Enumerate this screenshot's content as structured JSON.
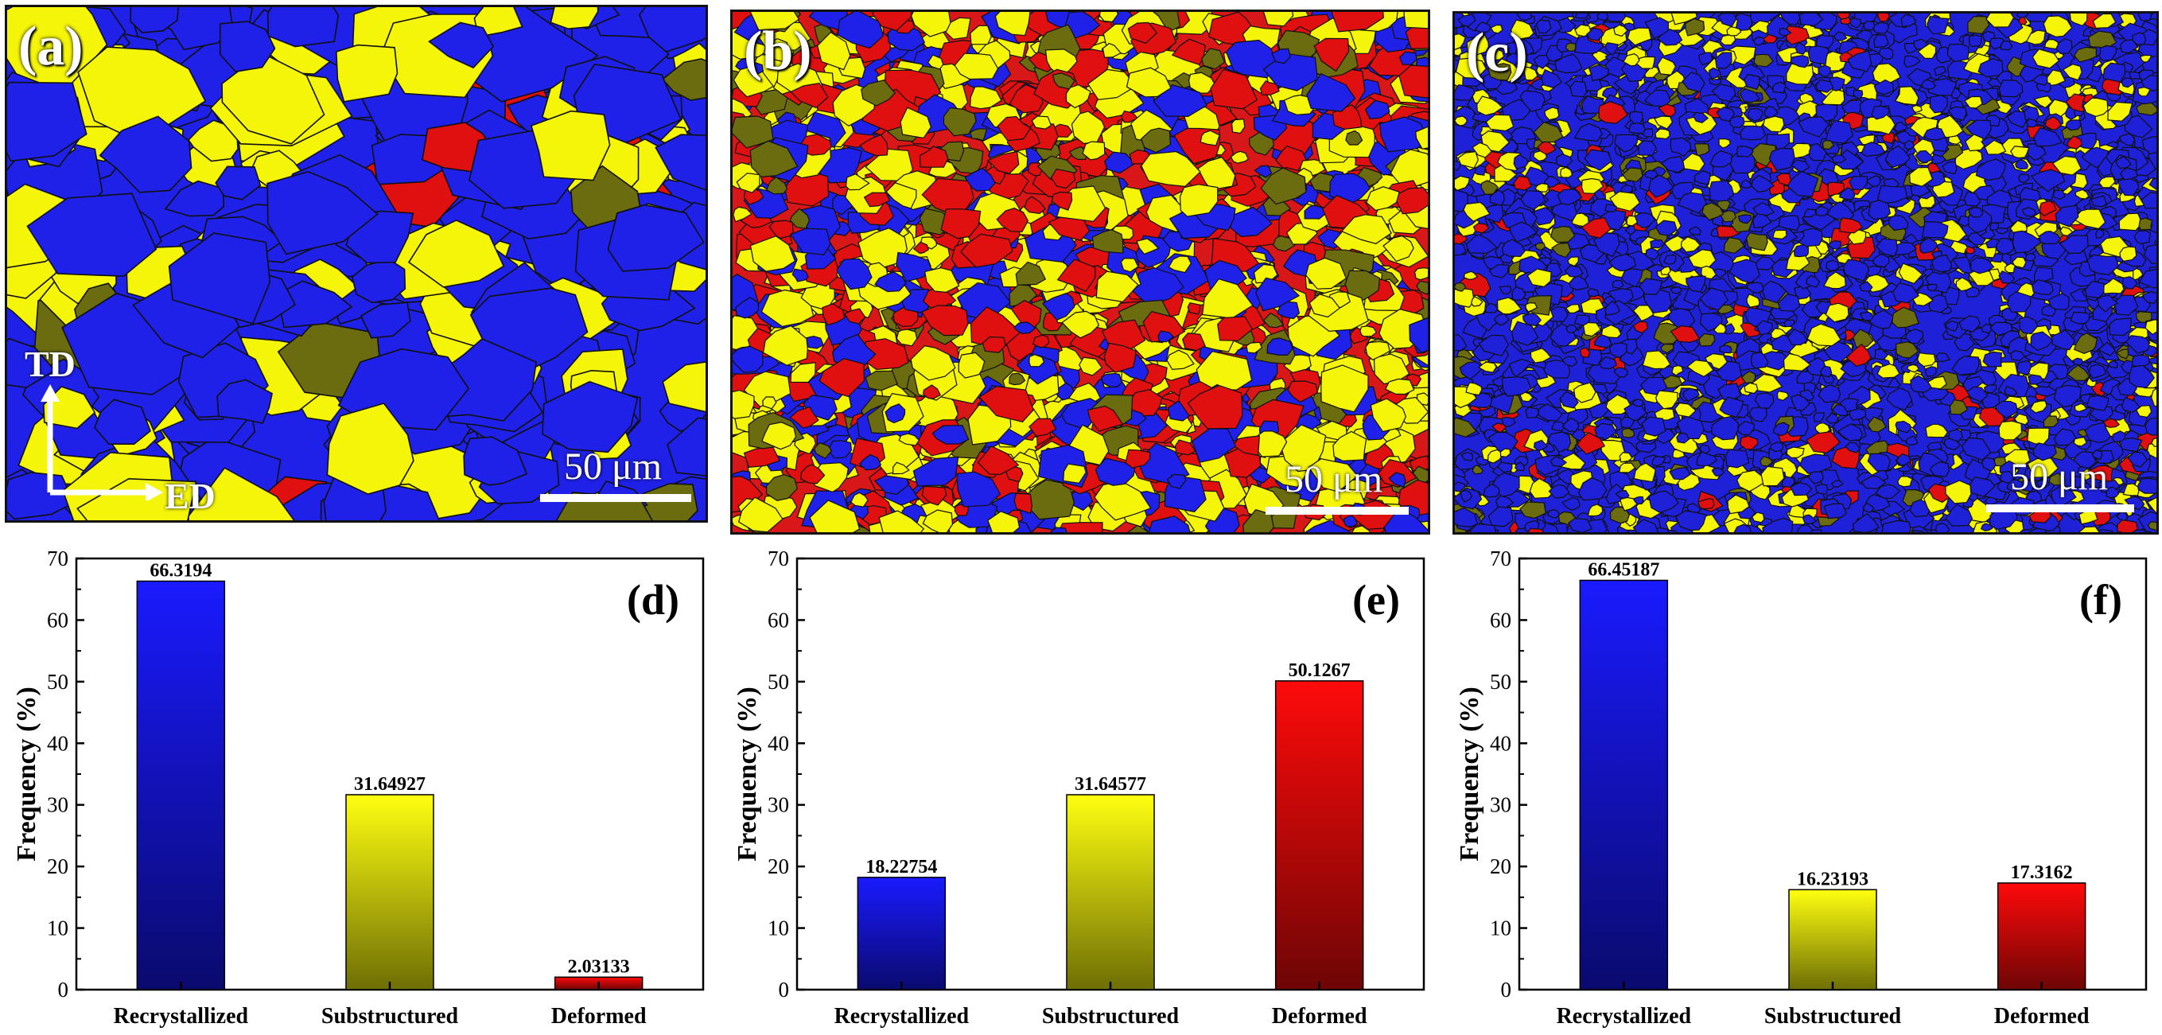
{
  "maps": [
    {
      "label": "(a)",
      "scalebar": "50 μm",
      "colors": {
        "base": "#1f21e8",
        "yellow": "#f5f50a",
        "red": "#e01010",
        "olive": "#6b6b10",
        "line": "#101010"
      }
    },
    {
      "label": "(b)",
      "scalebar": "50 μm",
      "colors": {
        "base": "#d81818",
        "yellow": "#f5f50a",
        "red": "#e01010",
        "olive": "#6b6b10",
        "line": "#101010"
      }
    },
    {
      "label": "(c)",
      "scalebar": "50 μm",
      "colors": {
        "base": "#1f21d8",
        "yellow": "#f5f50a",
        "red": "#e01010",
        "olive": "#6b6b10",
        "line": "#101010"
      }
    }
  ],
  "axes": {
    "td": "TD",
    "ed": "ED"
  },
  "chart_data": [
    {
      "type": "bar",
      "panel": "(d)",
      "ylabel": "Frequency (%)",
      "ylim": [
        0,
        70
      ],
      "yticks": [
        0,
        10,
        20,
        30,
        40,
        50,
        60,
        70
      ],
      "categories": [
        "Recrystallized",
        "Substructured",
        "Deformed"
      ],
      "values": [
        66.3194,
        31.64927,
        2.03133
      ],
      "value_labels": [
        "66.3194",
        "31.64927",
        "2.03133"
      ]
    },
    {
      "type": "bar",
      "panel": "(e)",
      "ylabel": "Frequency (%)",
      "ylim": [
        0,
        70
      ],
      "yticks": [
        0,
        10,
        20,
        30,
        40,
        50,
        60,
        70
      ],
      "categories": [
        "Recrystallized",
        "Substructured",
        "Deformed"
      ],
      "values": [
        18.22754,
        31.64577,
        50.1267
      ],
      "value_labels": [
        "18.22754",
        "31.64577",
        "50.1267"
      ]
    },
    {
      "type": "bar",
      "panel": "(f)",
      "ylabel": "Frequency (%)",
      "ylim": [
        0,
        70
      ],
      "yticks": [
        0,
        10,
        20,
        30,
        40,
        50,
        60,
        70
      ],
      "categories": [
        "Recrystallized",
        "Substructured",
        "Deformed"
      ],
      "values": [
        66.45187,
        16.23193,
        17.3162
      ],
      "value_labels": [
        "66.45187",
        "16.23193",
        "17.3162"
      ]
    }
  ],
  "bar_colors": [
    {
      "top": "#1a1aff",
      "bottom": "#0a0a6e"
    },
    {
      "top": "#ffff10",
      "bottom": "#6e6e05"
    },
    {
      "top": "#ff0a0a",
      "bottom": "#6e0505"
    }
  ]
}
